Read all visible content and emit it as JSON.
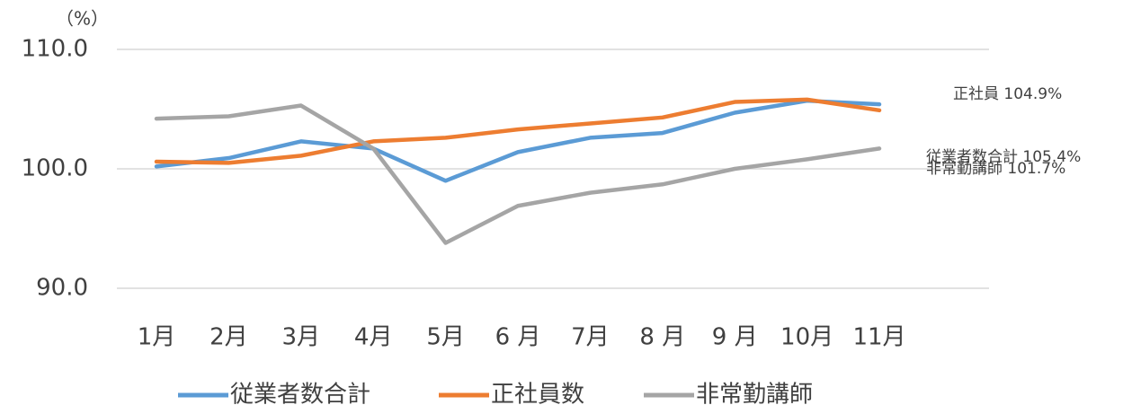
{
  "chart_data": {
    "type": "line",
    "y_label": "（%）",
    "categories": [
      "1月",
      "2月",
      "3月",
      "4月",
      "5月",
      "6 月",
      "7月",
      "8 月",
      "9 月",
      "10月",
      "11月"
    ],
    "series": [
      {
        "name": "従業者数合計",
        "color": "#5b9bd5",
        "values": [
          100.2,
          100.9,
          102.3,
          101.7,
          99.0,
          101.4,
          102.6,
          103.0,
          104.7,
          105.7,
          105.4
        ]
      },
      {
        "name": "正社員数",
        "color": "#ed7d31",
        "values": [
          100.6,
          100.5,
          101.1,
          102.3,
          102.6,
          103.3,
          103.8,
          104.3,
          105.6,
          105.8,
          104.9
        ]
      },
      {
        "name": "非常勤講師",
        "color": "#a5a5a5",
        "values": [
          104.2,
          104.4,
          105.3,
          101.7,
          93.8,
          96.9,
          98.0,
          98.7,
          100.0,
          100.8,
          101.7
        ]
      }
    ],
    "annotations": [
      "正社員 104.9%",
      "従業者数合計 105.4%",
      "非常勤講師 101.7%"
    ],
    "ylim": [
      90,
      110
    ],
    "yticks": [
      {
        "value": 90,
        "label": "90.0"
      },
      {
        "value": 100,
        "label": "100.0"
      },
      {
        "value": 110,
        "label": "110.0"
      }
    ],
    "grid": true,
    "legend": "bottom"
  }
}
